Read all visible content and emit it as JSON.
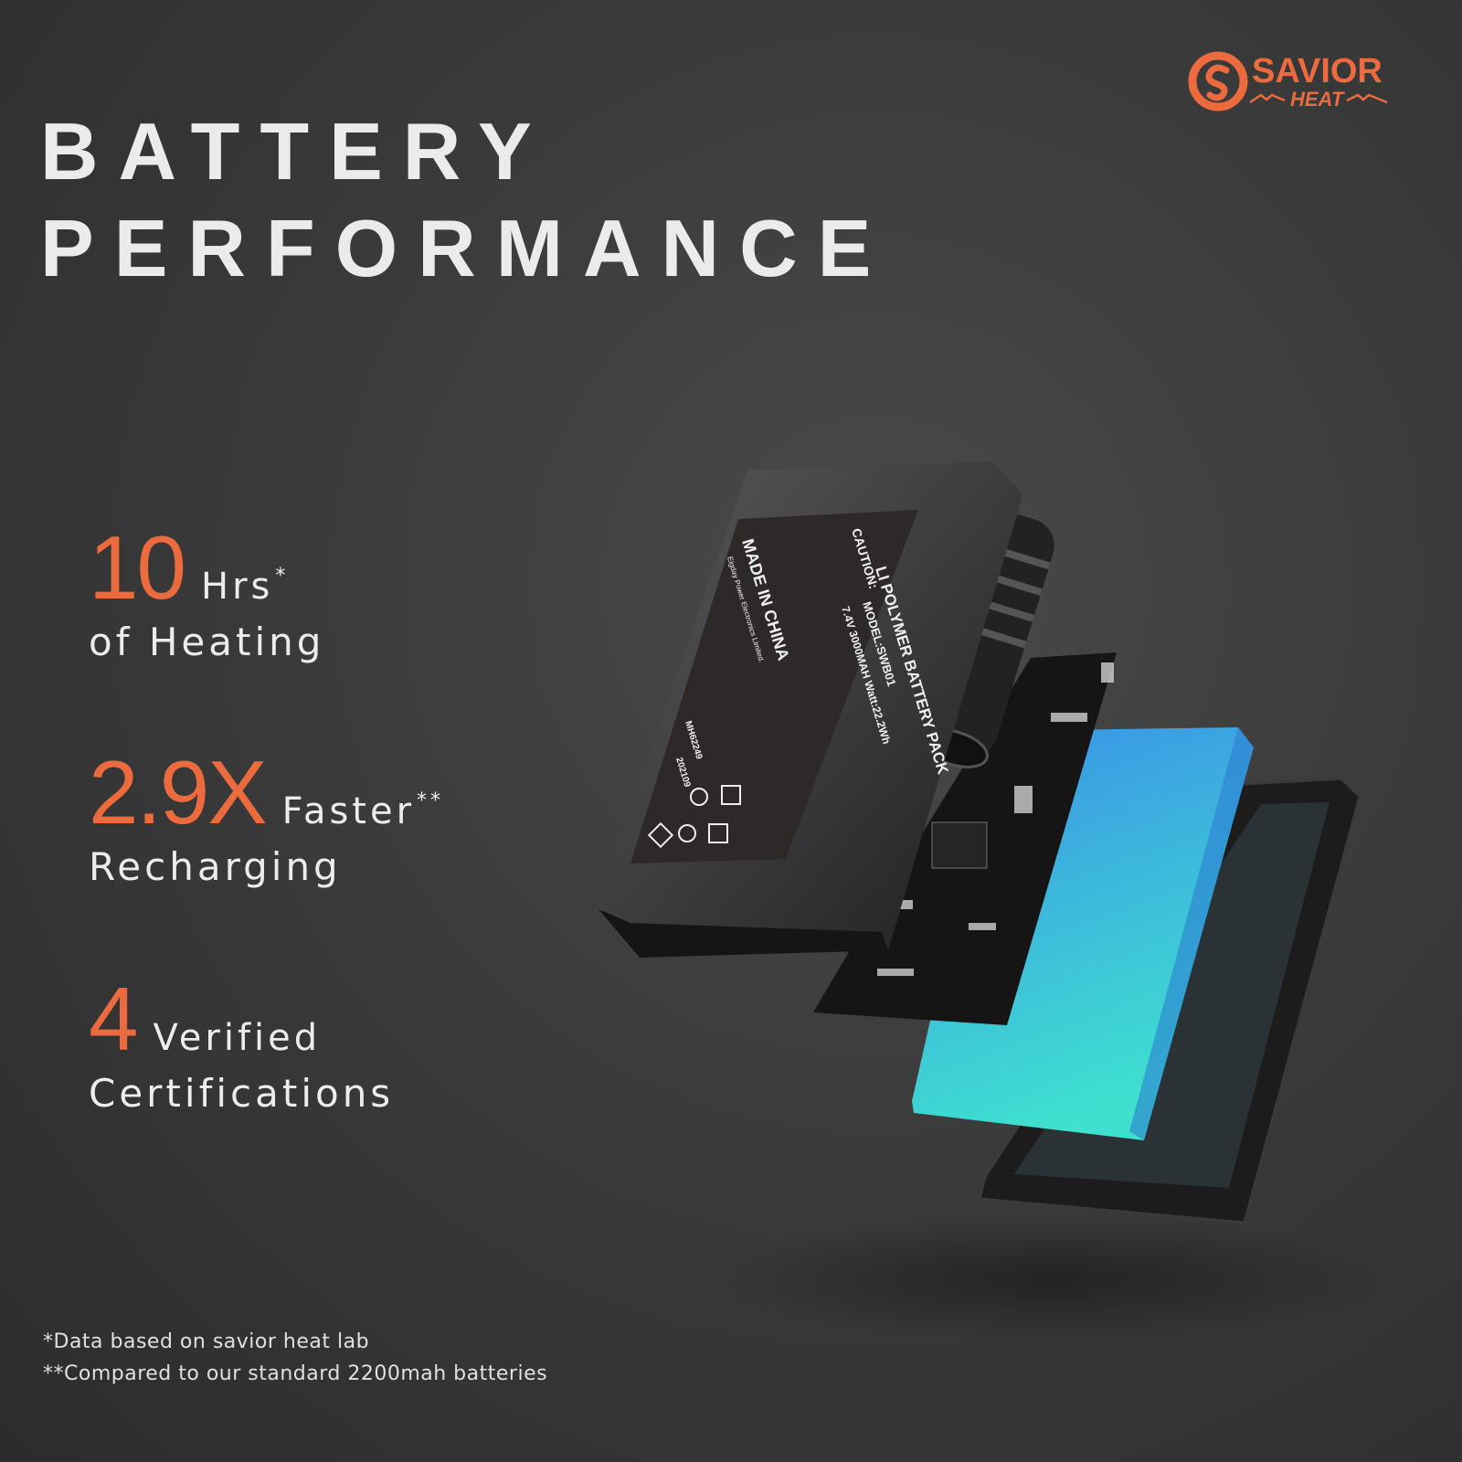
{
  "brand": {
    "name": "SAVIOR",
    "sub": "HEAT",
    "color": "#ec6b3e"
  },
  "title": {
    "line1": "BATTERY",
    "line2": "PERFORMANCE"
  },
  "stats": [
    {
      "value": "10",
      "unit": "Hrs",
      "mark": "*",
      "label": "of Heating"
    },
    {
      "value": "2.9X",
      "unit": "Faster",
      "mark": "**",
      "label": "Recharging"
    },
    {
      "value": "4",
      "unit": "Verified",
      "mark": "",
      "label": "Certifications"
    }
  ],
  "footnotes": [
    "*Data based on savior heat lab",
    "**Compared to our standard 2200mah batteries"
  ],
  "battery_label": {
    "line1": "LI POLYMER BATTERY PACK",
    "line2": "MODEL:SWB01",
    "line3": "7.4V 3000MAH Watt:22.2Wh",
    "caution": "CAUTION:",
    "origin": "MADE IN CHINA",
    "maker": "Eigday Power Electronics Limited.",
    "code": "MH62249",
    "date": "202109"
  },
  "colors": {
    "accent": "#ec6b3e",
    "cell_top": "#3a8fe8",
    "cell_bottom": "#3fe0cf"
  }
}
